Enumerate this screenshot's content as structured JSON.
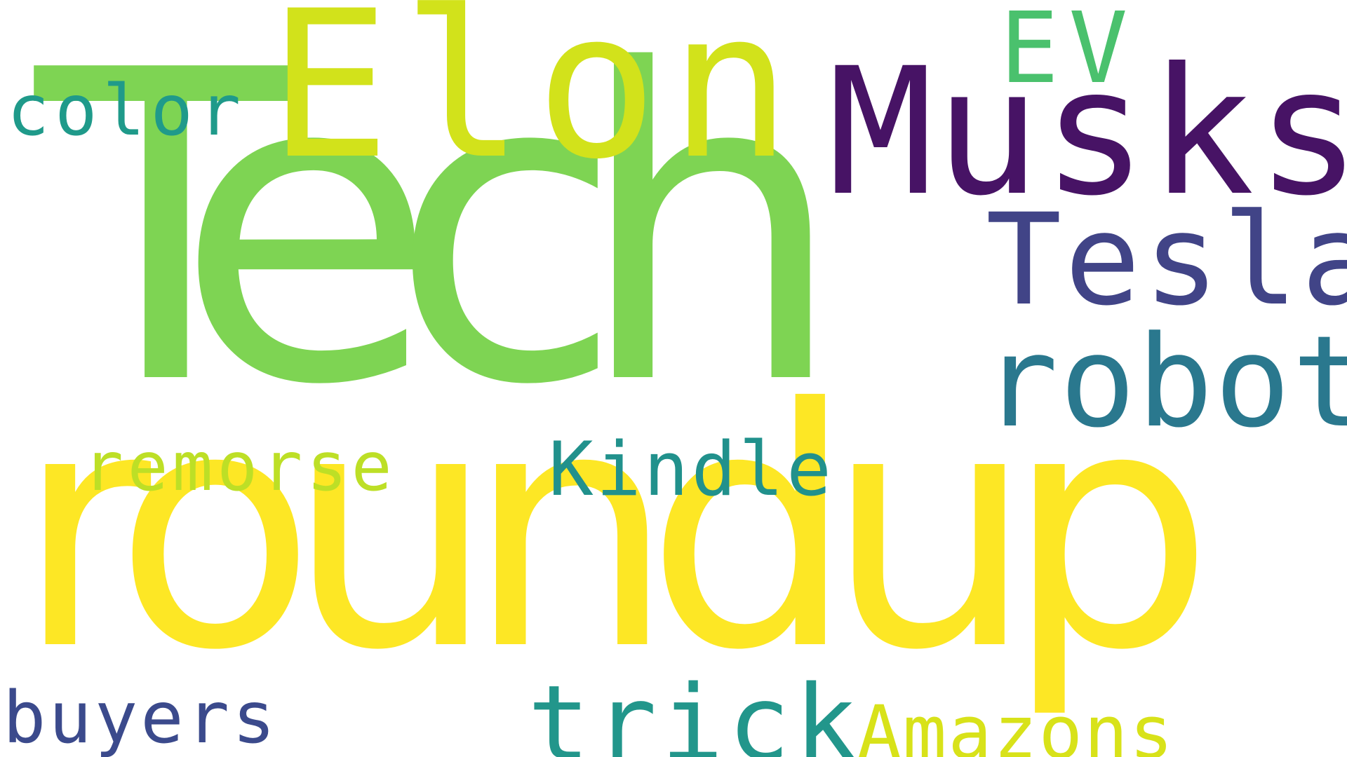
{
  "words": {
    "tech": {
      "text": "Tech",
      "color": "#7ed453"
    },
    "roundup": {
      "text": "roundup",
      "color": "#fde725"
    },
    "elon": {
      "text": "Elon",
      "color": "#d2e21b"
    },
    "musks": {
      "text": "Musks",
      "color": "#471365"
    },
    "tesla": {
      "text": "Tesla",
      "color": "#414487"
    },
    "robot": {
      "text": "robot",
      "color": "#2a788e"
    },
    "ev": {
      "text": "EV",
      "color": "#4ac16d"
    },
    "color": {
      "text": "color",
      "color": "#1f9a8a"
    },
    "remorse": {
      "text": "remorse",
      "color": "#bddf26"
    },
    "kindle": {
      "text": "Kindle",
      "color": "#21918c"
    },
    "trick": {
      "text": "trick",
      "color": "#22968b"
    },
    "amazons": {
      "text": "Amazons",
      "color": "#d8e219"
    },
    "buyers": {
      "text": "buyers",
      "color": "#3b4a8c"
    }
  }
}
